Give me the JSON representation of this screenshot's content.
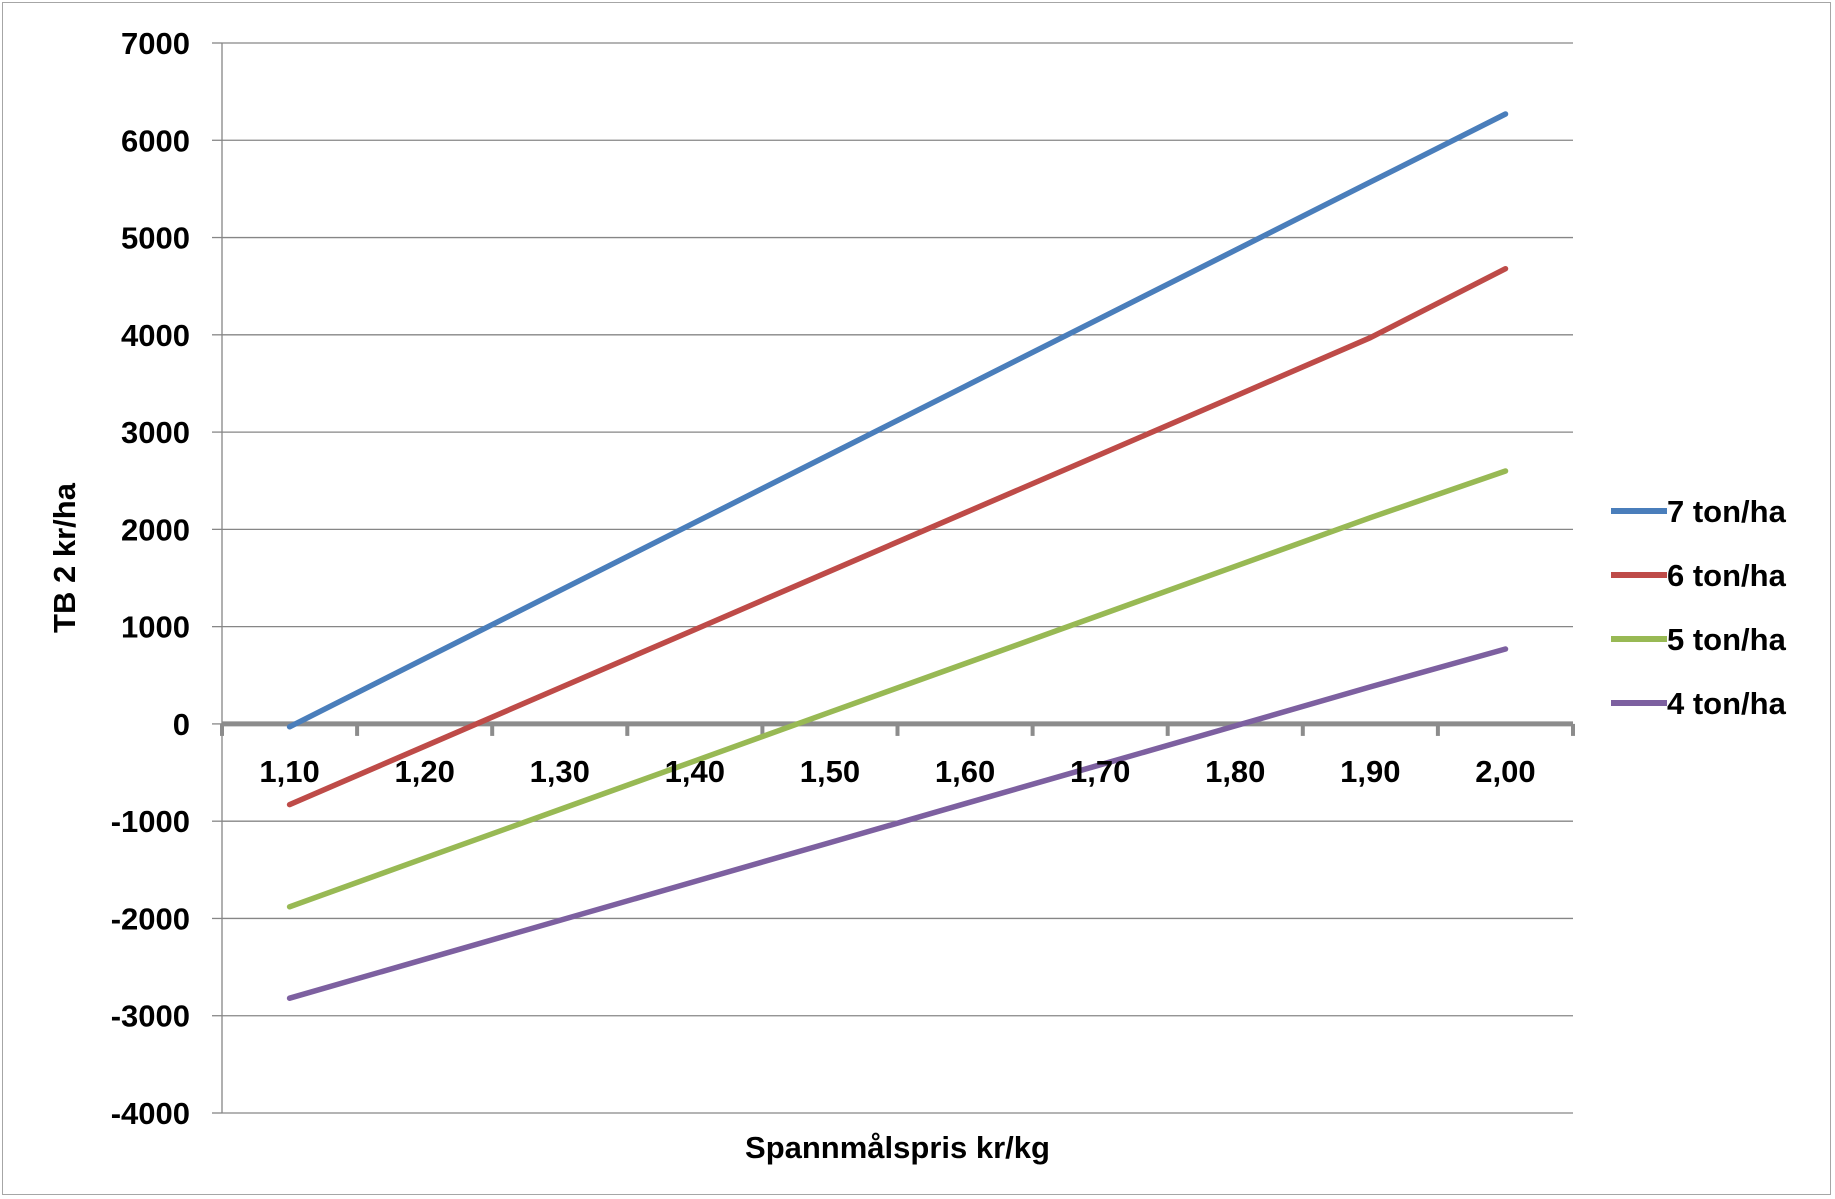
{
  "chart_data": {
    "type": "line",
    "title": "",
    "xlabel": "Spannmålspris kr/kg",
    "ylabel": "TB 2 kr/ha",
    "categories": [
      "1,10",
      "1,20",
      "1,30",
      "1,40",
      "1,50",
      "1,60",
      "1,70",
      "1,80",
      "1,90",
      "2,00"
    ],
    "x": [
      1.1,
      1.2,
      1.3,
      1.4,
      1.5,
      1.6,
      1.7,
      1.8,
      1.9,
      2.0
    ],
    "ylim": [
      -4000,
      7000
    ],
    "yticks": [
      7000,
      6000,
      5000,
      4000,
      3000,
      2000,
      1000,
      0,
      -1000,
      -2000,
      -3000,
      -4000
    ],
    "ytick_labels": [
      "7000",
      "6000",
      "5000",
      "4000",
      "3000",
      "2000",
      "1000",
      "0",
      "-1000",
      "-2000",
      "-3000",
      "-4000"
    ],
    "grid": true,
    "legend_position": "right",
    "series": [
      {
        "name": "7 ton/ha",
        "color": "#4a7ebb",
        "values": [
          -30,
          670,
          1370,
          2070,
          2770,
          3470,
          4170,
          4870,
          5570,
          6270
        ]
      },
      {
        "name": "6 ton/ha",
        "color": "#be4b48",
        "values": [
          -830,
          -230,
          370,
          970,
          1570,
          2170,
          2770,
          3370,
          3970,
          4680
        ]
      },
      {
        "name": "5 ton/ha",
        "color": "#98b954",
        "values": [
          -1880,
          -1380,
          -880,
          -380,
          120,
          620,
          1120,
          1620,
          2120,
          2600
        ]
      },
      {
        "name": "4 ton/ha",
        "color": "#7d60a0",
        "values": [
          -2820,
          -2420,
          -2020,
          -1620,
          -1220,
          -820,
          -420,
          -20,
          380,
          770
        ]
      }
    ]
  }
}
